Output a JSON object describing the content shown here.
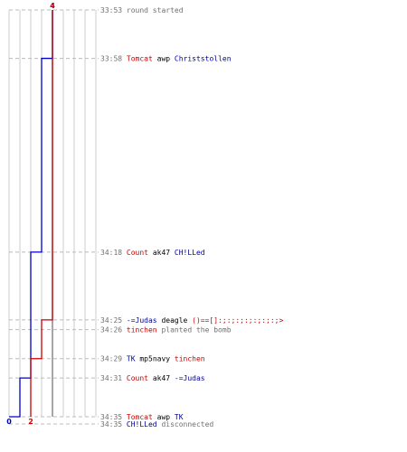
{
  "chart_data": {
    "type": "line",
    "x_axis": {
      "scale": [
        0,
        8
      ],
      "counts_labeled": [
        {
          "value": 0,
          "label": "0",
          "team": "blue",
          "where": "bottom"
        },
        {
          "value": 2,
          "label": "2",
          "team": "red",
          "where": "bottom"
        },
        {
          "value": 4,
          "label": "4",
          "team": "blue",
          "where": "top"
        },
        {
          "value": 4,
          "label": "4",
          "team": "red",
          "where": "top"
        }
      ]
    },
    "time_axis": {
      "start": "33:53",
      "end": "34:35",
      "direction": "down"
    },
    "series": [
      {
        "team": "blue",
        "color": "#0000cc",
        "points": [
          {
            "time": "33:53",
            "alive": 4
          },
          {
            "time": "33:58",
            "alive": 3
          },
          {
            "time": "34:18",
            "alive": 2
          },
          {
            "time": "34:31",
            "alive": 1
          },
          {
            "time": "34:35",
            "alive": 0
          }
        ]
      },
      {
        "team": "red",
        "color": "#cc0000",
        "points": [
          {
            "time": "33:53",
            "alive": 4
          },
          {
            "time": "34:25",
            "alive": 3
          },
          {
            "time": "34:29",
            "alive": 2
          }
        ]
      }
    ],
    "events": [
      {
        "time": "33:53",
        "parts": [
          {
            "text": "round started",
            "style": "gray"
          }
        ]
      },
      {
        "time": "33:58",
        "parts": [
          {
            "text": "Tomcat",
            "style": "red"
          },
          {
            "text": " awp ",
            "style": "black"
          },
          {
            "text": "Christstollen",
            "style": "blue"
          }
        ]
      },
      {
        "time": "34:18",
        "parts": [
          {
            "text": "Count",
            "style": "red"
          },
          {
            "text": " ak47 ",
            "style": "black"
          },
          {
            "text": "CH!LLed",
            "style": "blue"
          }
        ]
      },
      {
        "time": "34:25",
        "parts": [
          {
            "text": "-=Judas",
            "style": "blue"
          },
          {
            "text": " deagle ",
            "style": "black"
          },
          {
            "text": "()==[]:;:;:;:;:;:;:;>",
            "style": "red"
          }
        ]
      },
      {
        "time": "34:26",
        "parts": [
          {
            "text": "tinchen",
            "style": "red"
          },
          {
            "text": " planted the bomb",
            "style": "gray"
          }
        ]
      },
      {
        "time": "34:29",
        "parts": [
          {
            "text": "TK",
            "style": "blue"
          },
          {
            "text": " mp5navy ",
            "style": "black"
          },
          {
            "text": "tinchen",
            "style": "red"
          }
        ]
      },
      {
        "time": "34:31",
        "parts": [
          {
            "text": "Count",
            "style": "red"
          },
          {
            "text": " ak47 ",
            "style": "black"
          },
          {
            "text": "-=Judas",
            "style": "blue"
          }
        ]
      },
      {
        "time": "34:35",
        "parts": [
          {
            "text": "Tomcat",
            "style": "red"
          },
          {
            "text": " awp ",
            "style": "black"
          },
          {
            "text": "TK",
            "style": "blue"
          }
        ]
      },
      {
        "time": "34:35",
        "parts": [
          {
            "text": "CH!LLed",
            "style": "blue"
          },
          {
            "text": " disconnected",
            "style": "gray"
          }
        ]
      }
    ]
  }
}
